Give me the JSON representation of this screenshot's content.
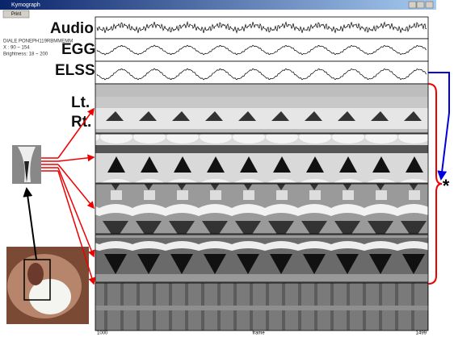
{
  "window": {
    "title": "Kymograph",
    "print_button": "Print"
  },
  "info": [
    "DIALE PONEPH119RBMMEMM",
    "X : 90 ~ 154",
    "Brightness: 18 ~ 200"
  ],
  "signals": [
    "Audio",
    "EGG",
    "ELSS"
  ],
  "sides": [
    "Lt.",
    "Rt."
  ],
  "marker": "*",
  "axis": {
    "start": "1000",
    "label": "frame",
    "end": "1499"
  }
}
